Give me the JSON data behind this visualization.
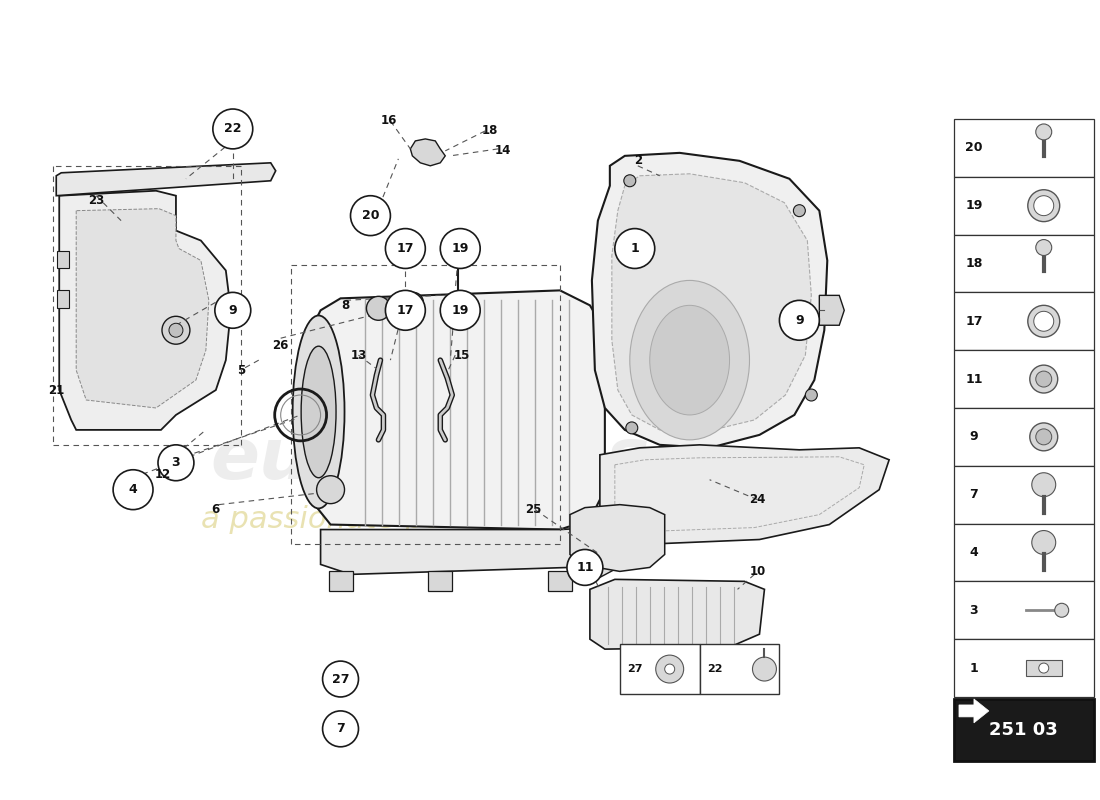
{
  "bg_color": "#ffffff",
  "line_color": "#1a1a1a",
  "part_code": "251 03",
  "legend_items": [
    {
      "num": "20"
    },
    {
      "num": "19"
    },
    {
      "num": "18"
    },
    {
      "num": "17"
    },
    {
      "num": "11"
    },
    {
      "num": "9"
    },
    {
      "num": "7"
    },
    {
      "num": "4"
    },
    {
      "num": "3"
    },
    {
      "num": "1"
    }
  ]
}
